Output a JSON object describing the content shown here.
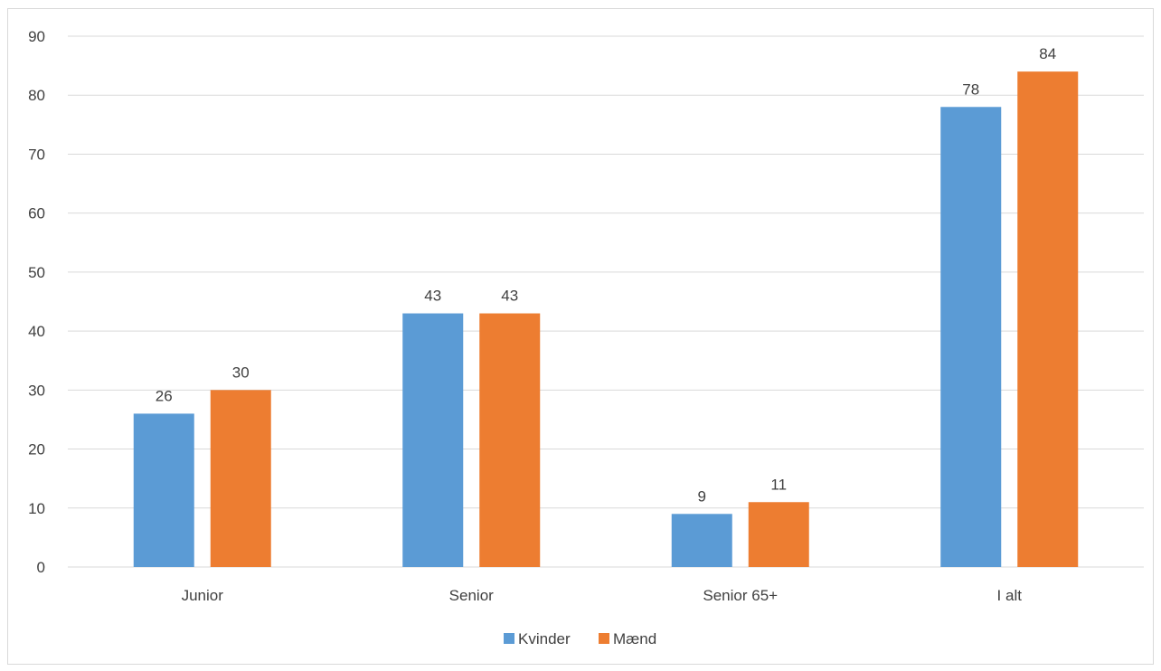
{
  "chart_data": {
    "type": "bar",
    "categories": [
      "Junior",
      "Senior",
      "Senior 65+",
      "I alt"
    ],
    "series": [
      {
        "name": "Kvinder",
        "values": [
          26,
          43,
          9,
          78
        ],
        "color": "#5b9bd5"
      },
      {
        "name": "Mænd",
        "values": [
          30,
          43,
          11,
          84
        ],
        "color": "#ed7d31"
      }
    ],
    "ylim": [
      0,
      90
    ],
    "yticks": [
      0,
      10,
      20,
      30,
      40,
      50,
      60,
      70,
      80,
      90
    ],
    "grid": true,
    "legend": "bottom",
    "data_labels": true,
    "gridline_color": "#d9d9d9"
  }
}
